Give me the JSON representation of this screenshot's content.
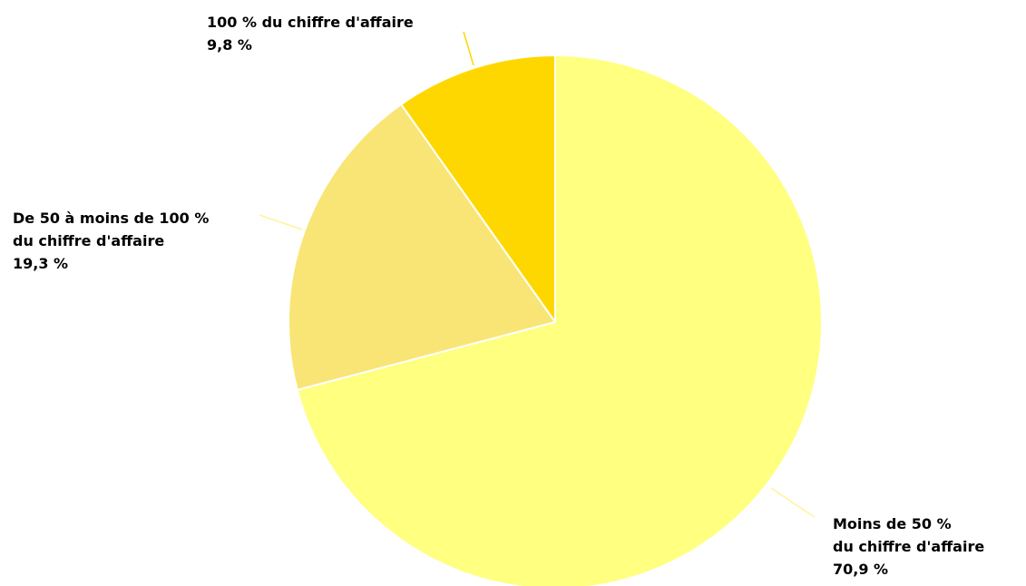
{
  "chart_data": {
    "type": "pie",
    "title": "",
    "slices": [
      {
        "label_lines": [
          "Moins de 50 %",
          "du chiffre d'affaire"
        ],
        "value_label": "70,9 %",
        "value": 70.9,
        "color": "#FFFF80"
      },
      {
        "label_lines": [
          "De 50 à moins de 100 %",
          "du chiffre d'affaire"
        ],
        "value_label": "19,3 %",
        "value": 19.3,
        "color": "#F9E576"
      },
      {
        "label_lines": [
          "100 % du chiffre d'affaire"
        ],
        "value_label": "9,8 %",
        "value": 9.8,
        "color": "#FFD700"
      }
    ],
    "start": "12 o'clock",
    "direction": "clockwise",
    "leader_line_color": "#FFF3A0",
    "slice_border_color": "#FFFFFF"
  }
}
